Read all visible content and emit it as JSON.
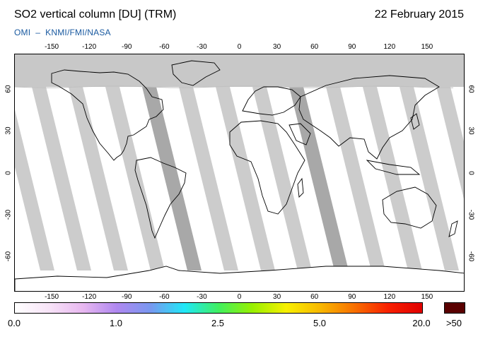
{
  "header": {
    "title": "SO2 vertical column [DU] (TRM)",
    "date": "22 February 2015",
    "credit_instrument": "OMI",
    "credit_separator": "–",
    "credit_agencies": "KNMI/FMI/NASA"
  },
  "axes": {
    "lon_ticks": [
      "-150",
      "-120",
      "-90",
      "-60",
      "-30",
      "0",
      "30",
      "60",
      "90",
      "120",
      "150"
    ],
    "lat_ticks": [
      "60",
      "30",
      "0",
      "-30",
      "-60"
    ]
  },
  "colorbar": {
    "labels": [
      "0.0",
      "1.0",
      "2.5",
      "5.0",
      "20.0"
    ],
    "over_label": ">50",
    "gradient_colors": [
      "#ffffff",
      "#f8e4f8",
      "#e8b8f0",
      "#b088f0",
      "#7898f0",
      "#20e8f8",
      "#40f060",
      "#98f000",
      "#f8f000",
      "#f8b800",
      "#f87000",
      "#f82000",
      "#e00000"
    ],
    "over_color": "#5a0000"
  },
  "map": {
    "polar_color": "#c8c8c8",
    "swath_color": "#cccccc",
    "dark_swath_color": "#a8a8a8",
    "coast_color": "#000000"
  }
}
